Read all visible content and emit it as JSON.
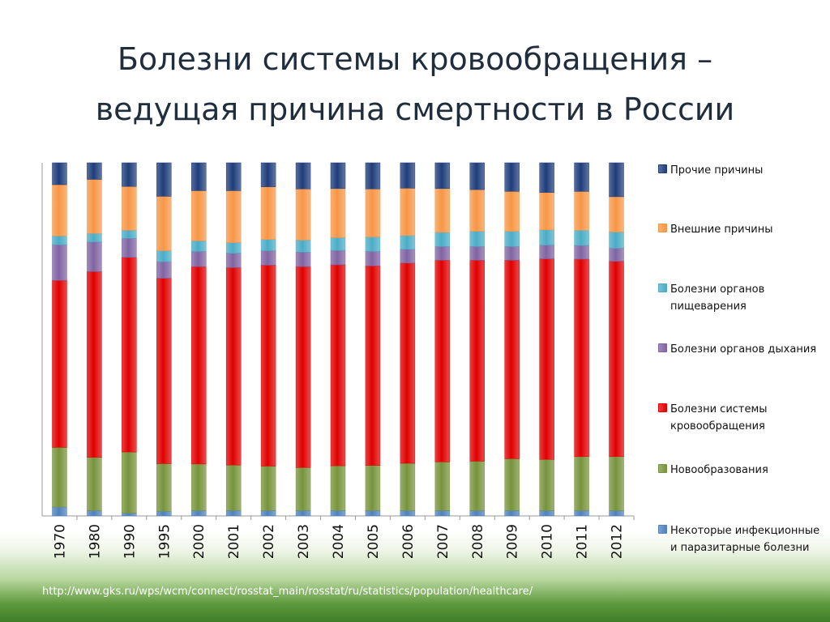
{
  "slide": {
    "title_line1": "Болезни системы кровообращения –",
    "title_line2": "ведущая причина смертности в России",
    "source": "http://www.gks.ru/wps/wcm/connect/rosstat_main/rosstat/ru/statistics/population/healthcare/"
  },
  "colors": {
    "infectious": "#4f81bd",
    "neoplasms": "#77933c",
    "circulatory": "#e00000",
    "respiratory": "#8064a2",
    "digestive": "#4bacc6",
    "external": "#f79646",
    "other": "#1f3d7a"
  },
  "chart_data": {
    "type": "bar",
    "stacked": "percent",
    "categories": [
      "1970",
      "1980",
      "1990",
      "1995",
      "2000",
      "2001",
      "2002",
      "2003",
      "2004",
      "2005",
      "2006",
      "2007",
      "2008",
      "2009",
      "2010",
      "2011",
      "2012"
    ],
    "ylim": [
      0,
      100
    ],
    "grid": false,
    "legend_position": "right",
    "series": [
      {
        "key": "infectious",
        "name": "Некоторые инфекционные и паразитарные болезни",
        "values": [
          2.5,
          1.5,
          0.8,
          1.3,
          1.5,
          1.5,
          1.5,
          1.5,
          1.5,
          1.5,
          1.5,
          1.5,
          1.5,
          1.5,
          1.5,
          1.5,
          1.5
        ]
      },
      {
        "key": "neoplasms",
        "name": "Новообразования",
        "values": [
          16.9,
          15.1,
          17.3,
          13.5,
          13.2,
          12.9,
          12.6,
          12.2,
          12.7,
          12.8,
          13.4,
          13.8,
          14.0,
          14.7,
          14.5,
          15.3,
          15.3
        ]
      },
      {
        "key": "circulatory",
        "name": "Болезни системы кровообращения",
        "values": [
          47.3,
          52.6,
          55.1,
          52.5,
          55.9,
          55.9,
          56.9,
          56.9,
          56.9,
          56.5,
          56.7,
          57.1,
          56.9,
          56.2,
          56.8,
          55.9,
          55.3
        ]
      },
      {
        "key": "respiratory",
        "name": "Болезни органов дыхания",
        "values": [
          10.1,
          8.4,
          5.4,
          4.7,
          4.3,
          4.1,
          4.1,
          4.1,
          4.1,
          4.1,
          3.9,
          3.9,
          3.9,
          3.9,
          3.9,
          3.9,
          3.7
        ]
      },
      {
        "key": "digestive",
        "name": "Болезни органов пищеварения",
        "values": [
          2.5,
          2.4,
          2.3,
          3.1,
          3.0,
          3.0,
          3.2,
          3.4,
          3.6,
          4.1,
          3.9,
          4.0,
          4.3,
          4.3,
          4.3,
          4.3,
          4.6
        ]
      },
      {
        "key": "external",
        "name": "Внешние причины",
        "values": [
          14.5,
          15.3,
          12.4,
          15.4,
          14.2,
          14.7,
          14.9,
          14.5,
          13.9,
          13.6,
          13.4,
          12.4,
          11.8,
          11.3,
          10.6,
          11.0,
          10.0
        ]
      },
      {
        "key": "other",
        "name": "Прочие причины",
        "values": [
          6.2,
          4.7,
          6.7,
          9.5,
          7.9,
          7.9,
          6.8,
          7.4,
          7.3,
          7.4,
          7.2,
          7.3,
          7.6,
          8.1,
          8.4,
          8.1,
          9.6
        ]
      }
    ],
    "legend_order": [
      "other",
      "external",
      "digestive",
      "respiratory",
      "circulatory",
      "neoplasms",
      "infectious"
    ]
  }
}
